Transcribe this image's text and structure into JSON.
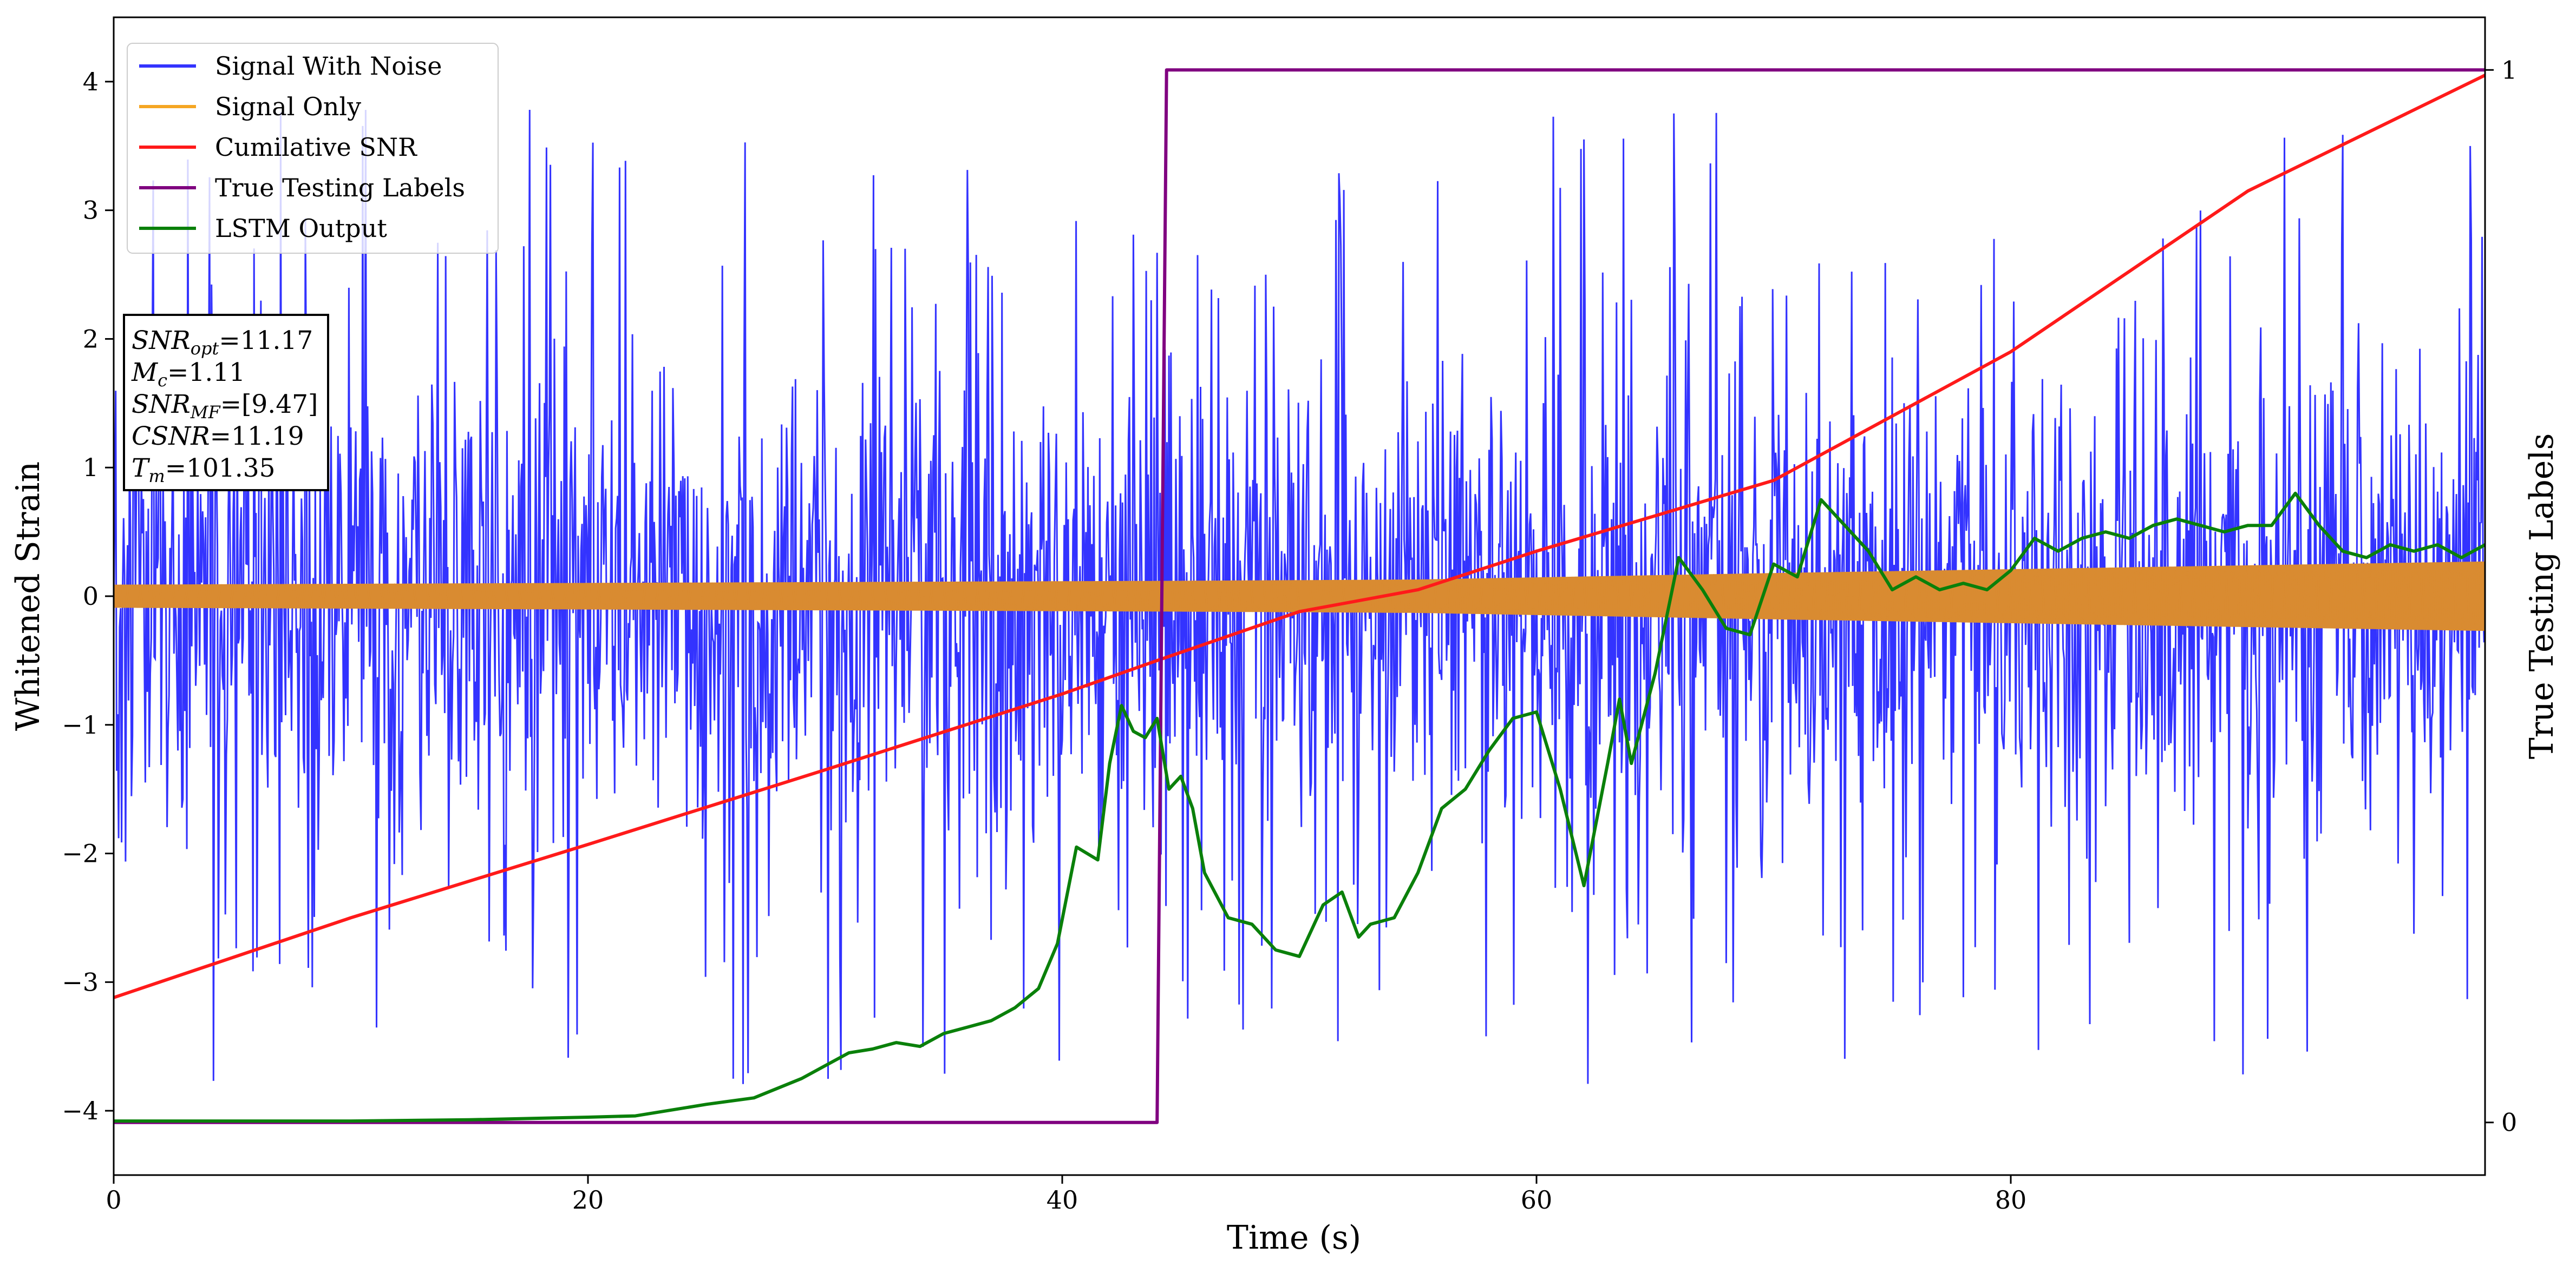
{
  "chart_data": {
    "type": "line",
    "xlabel": "Time (s)",
    "ylabel": "Whitened Strain",
    "y2label": "True Testing Labels",
    "xlim": [
      0,
      100
    ],
    "ylim": [
      -4.5,
      4.5
    ],
    "y2lim": [
      -0.05,
      1.05
    ],
    "x_ticks": [
      0,
      20,
      40,
      60,
      80
    ],
    "y_ticks": [
      -4,
      -3,
      -2,
      -1,
      0,
      1,
      2,
      3,
      4
    ],
    "y2_ticks": [
      0,
      1
    ],
    "grid": false,
    "legend_position": "top-left",
    "colors": {
      "noise": "#3333ff",
      "signal": "#d98b31",
      "signal_legend": "#f5a623",
      "csnr": "#ff1a1a",
      "labels": "#800080",
      "lstm": "#0a800a"
    },
    "series": [
      {
        "name": "Signal With Noise",
        "axis": "left",
        "description_values": {
          "typical_amplitude": [
            -2.0,
            2.2
          ],
          "peak_max": 4.1,
          "peak_min": -3.95
        }
      },
      {
        "name": "Signal Only",
        "axis": "left",
        "envelope": {
          "x": [
            0,
            45,
            55,
            70,
            100
          ],
          "amplitude": [
            0.09,
            0.12,
            0.13,
            0.18,
            0.27
          ]
        }
      },
      {
        "name": "Cumilative SNR",
        "axis": "left",
        "x": [
          0,
          10,
          20,
          30,
          40,
          44,
          50,
          55,
          60,
          70,
          80,
          90,
          100
        ],
        "y": [
          -3.12,
          -2.5,
          -1.93,
          -1.35,
          -0.76,
          -0.5,
          -0.12,
          0.05,
          0.35,
          0.9,
          1.9,
          3.15,
          4.05
        ]
      },
      {
        "name": "True Testing Labels",
        "axis": "right",
        "x": [
          0,
          44.0,
          44.4,
          100
        ],
        "y": [
          0,
          0,
          1,
          1
        ]
      },
      {
        "name": "LSTM Output",
        "axis": "left",
        "x": [
          0,
          10,
          15,
          20,
          22,
          25,
          27,
          29,
          30,
          31,
          32,
          33,
          34,
          35,
          36,
          37,
          38,
          39,
          39.8,
          40.6,
          41.5,
          42,
          42.5,
          43,
          43.5,
          44,
          44.5,
          45,
          45.5,
          46,
          47,
          48,
          49,
          50,
          51,
          51.8,
          52.5,
          53,
          54,
          55,
          56,
          57,
          58,
          59,
          60,
          61,
          62,
          63,
          63.5,
          64,
          65,
          66,
          67,
          68,
          69,
          70,
          71,
          72,
          73,
          74,
          75,
          76,
          77,
          78,
          79,
          80,
          81,
          82,
          83,
          84,
          85,
          86,
          87,
          88,
          89,
          90,
          91,
          92,
          93,
          94,
          95,
          96,
          97,
          98,
          99,
          100
        ],
        "y": [
          -4.08,
          -4.08,
          -4.07,
          -4.05,
          -4.04,
          -3.95,
          -3.9,
          -3.75,
          -3.65,
          -3.55,
          -3.52,
          -3.47,
          -3.5,
          -3.4,
          -3.35,
          -3.3,
          -3.2,
          -3.05,
          -2.7,
          -1.95,
          -2.05,
          -1.3,
          -0.85,
          -1.05,
          -1.1,
          -0.95,
          -1.5,
          -1.4,
          -1.65,
          -2.15,
          -2.5,
          -2.55,
          -2.75,
          -2.8,
          -2.4,
          -2.3,
          -2.65,
          -2.55,
          -2.5,
          -2.15,
          -1.65,
          -1.5,
          -1.2,
          -0.95,
          -0.9,
          -1.5,
          -2.25,
          -1.3,
          -0.8,
          -1.3,
          -0.6,
          0.3,
          0.05,
          -0.25,
          -0.3,
          0.25,
          0.15,
          0.75,
          0.55,
          0.35,
          0.05,
          0.15,
          0.05,
          0.1,
          0.05,
          0.2,
          0.45,
          0.35,
          0.45,
          0.5,
          0.45,
          0.55,
          0.6,
          0.55,
          0.5,
          0.55,
          0.55,
          0.8,
          0.55,
          0.35,
          0.3,
          0.4,
          0.35,
          0.4,
          0.3,
          0.4
        ]
      }
    ],
    "annotation": [
      {
        "name": "SNR",
        "sub": "opt",
        "value": "=11.17"
      },
      {
        "name": "M",
        "sub": "c",
        "value": "=1.11"
      },
      {
        "name": "SNR",
        "sub": "MF",
        "value": "=[9.47]"
      },
      {
        "name": "CSNR",
        "sub": "",
        "value": "=11.19"
      },
      {
        "name": "T",
        "sub": "m",
        "value": "=101.35"
      }
    ]
  }
}
